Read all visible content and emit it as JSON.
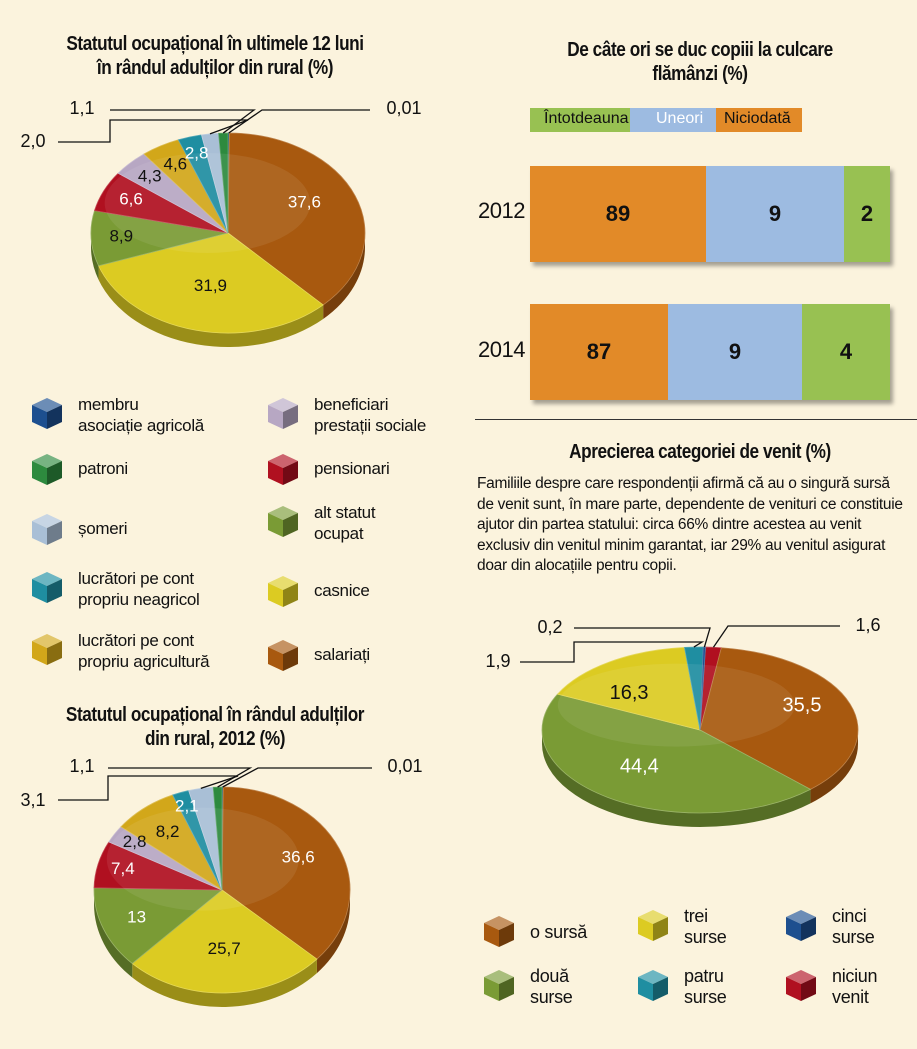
{
  "colors": {
    "membru": "#1d4f8f",
    "patroni": "#2d8a3e",
    "someri": "#a9bfd6",
    "lucr_neagr": "#1f8ea1",
    "lucr_agr": "#d2a71a",
    "beneficiari": "#b7a7c3",
    "pensionari": "#b01020",
    "alt_statut": "#7a9b35",
    "casnice": "#dccb22",
    "salariati": "#a8590f",
    "orange": "#e28a28",
    "blue": "#9dbbe1",
    "green": "#98c152"
  },
  "chart1": {
    "title_line1": "Statutul ocupațional în ultimele 12 luni",
    "title_line2": "în rândul adulților din rural (%)"
  },
  "chart2": {
    "title_line1": "Statutul ocupațional în rândul adulților",
    "title_line2": "din rural, 2012 (%)"
  },
  "bar_chart": {
    "title_line1": "De câte ori se duc copiii la culcare",
    "title_line2": "flămânzi (%)"
  },
  "chart3": {
    "title": "Aprecierea categoriei de venit (%)",
    "note": "Familiile despre care respondenții afirmă că au o singură sursă de venit sunt, în mare parte, dependente de venituri ce constituie ajutor din partea statului: circa 66% dintre acestea au venit exclusiv din venitul minim garantat, iar 29% au venitul asigurat doar din alocațiile pentru copii."
  },
  "legend_status": [
    {
      "label1": "membru",
      "label2": "asociație agricolă",
      "color": "#1d4f8f"
    },
    {
      "label1": "beneficiari",
      "label2": "prestații sociale",
      "color": "#b7a7c3"
    },
    {
      "label1": "patroni",
      "label2": "",
      "color": "#2d8a3e"
    },
    {
      "label1": "pensionari",
      "label2": "",
      "color": "#b01020"
    },
    {
      "label1": "șomeri",
      "label2": "",
      "color": "#a9bfd6"
    },
    {
      "label1": "alt statut",
      "label2": "ocupat",
      "color": "#7a9b35"
    },
    {
      "label1": "lucrători pe cont",
      "label2": "propriu neagricol",
      "color": "#1f8ea1"
    },
    {
      "label1": "casnice",
      "label2": "",
      "color": "#dccb22"
    },
    {
      "label1": "lucrători pe cont",
      "label2": "propriu agricultură",
      "color": "#d2a71a"
    },
    {
      "label1": "salariați",
      "label2": "",
      "color": "#a8590f"
    }
  ],
  "legend_income": [
    {
      "label1": "o sursă",
      "label2": "",
      "color": "#a8590f"
    },
    {
      "label1": "trei",
      "label2": "surse",
      "color": "#dccb22"
    },
    {
      "label1": "cinci",
      "label2": "surse",
      "color": "#1d4f8f"
    },
    {
      "label1": "două",
      "label2": "surse",
      "color": "#7a9b35"
    },
    {
      "label1": "patru",
      "label2": "surse",
      "color": "#1f8ea1"
    },
    {
      "label1": "niciun",
      "label2": "venit",
      "color": "#b01020"
    }
  ],
  "chart_data": [
    {
      "type": "pie",
      "title": "Statutul ocupațional în ultimele 12 luni în rândul adulților din rural (%)",
      "slices": [
        {
          "label": "membru asociație agricolă",
          "value": 0.01,
          "text": "0,01"
        },
        {
          "label": "salariați",
          "value": 37.6,
          "text": "37,6"
        },
        {
          "label": "casnice",
          "value": 31.9,
          "text": "31,9"
        },
        {
          "label": "alt statut ocupat",
          "value": 8.9,
          "text": "8,9"
        },
        {
          "label": "pensionari",
          "value": 6.6,
          "text": "6,6"
        },
        {
          "label": "beneficiari prestații sociale",
          "value": 4.3,
          "text": "4,3"
        },
        {
          "label": "lucrători pe cont propriu agricultură",
          "value": 4.6,
          "text": "4,6"
        },
        {
          "label": "lucrători pe cont propriu neagricol",
          "value": 2.8,
          "text": "2,8"
        },
        {
          "label": "șomeri",
          "value": 2.0,
          "text": "2,0"
        },
        {
          "label": "patroni",
          "value": 1.1,
          "text": "1,1"
        }
      ]
    },
    {
      "type": "pie",
      "title": "Statutul ocupațional în rândul adulților din rural, 2012 (%)",
      "slices": [
        {
          "label": "membru asociație agricolă",
          "value": 0.01,
          "text": "0,01"
        },
        {
          "label": "salariați",
          "value": 36.6,
          "text": "36,6"
        },
        {
          "label": "casnice",
          "value": 25.7,
          "text": "25,7"
        },
        {
          "label": "alt statut ocupat",
          "value": 13,
          "text": "13"
        },
        {
          "label": "pensionari",
          "value": 7.4,
          "text": "7,4"
        },
        {
          "label": "beneficiari prestații sociale",
          "value": 2.8,
          "text": "2,8"
        },
        {
          "label": "lucrători pe cont propriu agricultură",
          "value": 8.2,
          "text": "8,2"
        },
        {
          "label": "lucrători pe cont propriu neagricol",
          "value": 2.1,
          "text": "2,1"
        },
        {
          "label": "șomeri",
          "value": 3.1,
          "text": "3,1"
        },
        {
          "label": "patroni",
          "value": 1.1,
          "text": "1,1"
        }
      ]
    },
    {
      "type": "bar",
      "title": "De câte ori se duc copiii la culcare flămânzi (%)",
      "categories": [
        "2012",
        "2014"
      ],
      "series": [
        {
          "name": "Niciodată",
          "values": [
            89,
            87
          ]
        },
        {
          "name": "Uneori",
          "values": [
            9,
            9
          ]
        },
        {
          "name": "Întotdeauna",
          "values": [
            2,
            4
          ]
        }
      ],
      "legend": [
        "Întotdeauna",
        "Uneori",
        "Niciodată"
      ]
    },
    {
      "type": "pie",
      "title": "Aprecierea categoriei de venit (%)",
      "slices": [
        {
          "label": "niciun venit",
          "value": 1.6,
          "text": "1,6"
        },
        {
          "label": "o sursă",
          "value": 35.5,
          "text": "35,5"
        },
        {
          "label": "două surse",
          "value": 44.4,
          "text": "44,4"
        },
        {
          "label": "trei surse",
          "value": 16.3,
          "text": "16,3"
        },
        {
          "label": "patru surse",
          "value": 1.9,
          "text": "1,9"
        },
        {
          "label": "cinci surse",
          "value": 0.2,
          "text": "0,2"
        }
      ]
    }
  ]
}
